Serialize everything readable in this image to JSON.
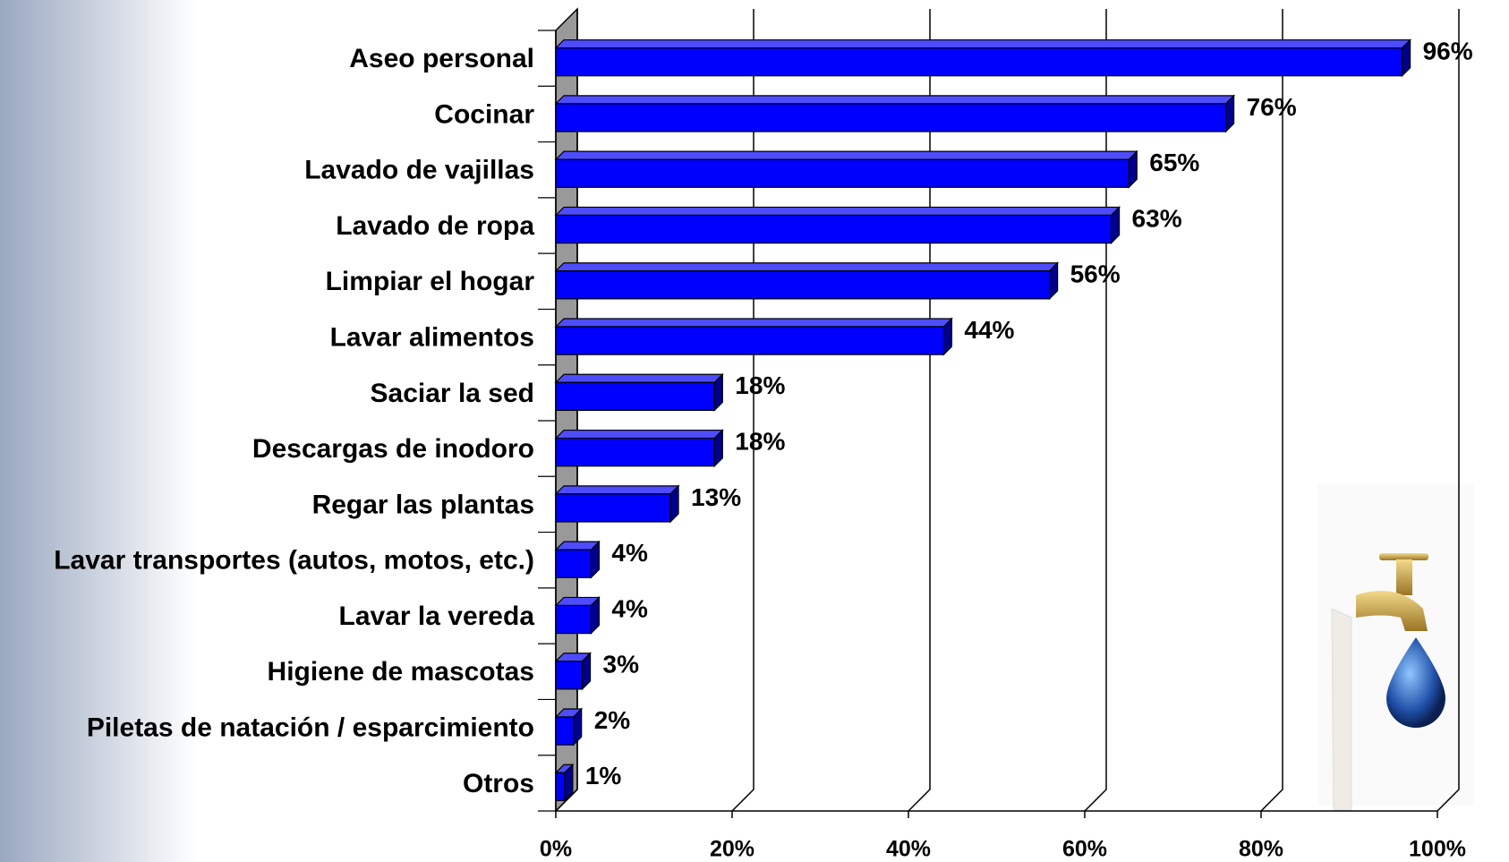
{
  "chart_data": {
    "type": "bar",
    "orientation": "horizontal",
    "three_d": true,
    "categories": [
      "Aseo personal",
      "Cocinar",
      "Lavado de vajillas",
      "Lavado de ropa",
      "Limpiar el hogar",
      "Lavar alimentos",
      "Saciar la sed",
      "Descargas de inodoro",
      "Regar las plantas",
      "Lavar transportes (autos, motos, etc.)",
      "Lavar la vereda",
      "Higiene de mascotas",
      "Piletas de natación / esparcimiento",
      "Otros"
    ],
    "values": [
      96,
      76,
      65,
      63,
      56,
      44,
      18,
      18,
      13,
      4,
      4,
      3,
      2,
      1
    ],
    "value_labels": [
      "96%",
      "76%",
      "65%",
      "63%",
      "56%",
      "44%",
      "18%",
      "18%",
      "13%",
      "4%",
      "4%",
      "3%",
      "2%",
      "1%"
    ],
    "color": "#0000ff",
    "xlim": [
      0,
      100
    ],
    "xticks": [
      {
        "value": 0,
        "label": "0%"
      },
      {
        "value": 20,
        "label": "20%"
      },
      {
        "value": 40,
        "label": "40%"
      },
      {
        "value": 60,
        "label": "60%"
      },
      {
        "value": 80,
        "label": "80%"
      },
      {
        "value": 100,
        "label": "100%"
      }
    ],
    "grid": true
  }
}
